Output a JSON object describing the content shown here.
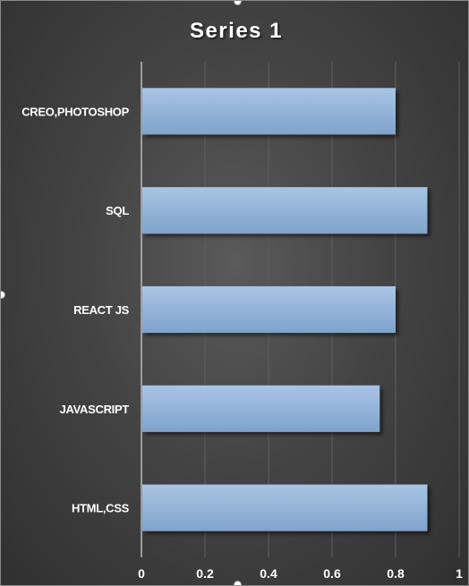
{
  "chart_data": {
    "type": "bar",
    "orientation": "horizontal",
    "title": "Series 1",
    "categories": [
      "CREO,PHOTOSHOP",
      "SQL",
      "REACT JS",
      "JAVASCRIPT",
      "HTML,CSS"
    ],
    "series": [
      {
        "values": [
          0.8,
          0.9,
          0.8,
          0.75,
          0.9
        ]
      }
    ],
    "xlim": [
      0,
      1
    ],
    "xticks": [
      "0",
      "0.2",
      "0.4",
      "0.6",
      "0.8",
      "1"
    ],
    "grid": true,
    "legend": "none",
    "colors": {
      "bar_top": "#a9c4e3",
      "bar_bottom": "#7ea3cc",
      "background": "#3f3f3f",
      "text": "#ffffff",
      "gridline": "#5e5e5e",
      "axis": "#d9d9d9"
    }
  }
}
